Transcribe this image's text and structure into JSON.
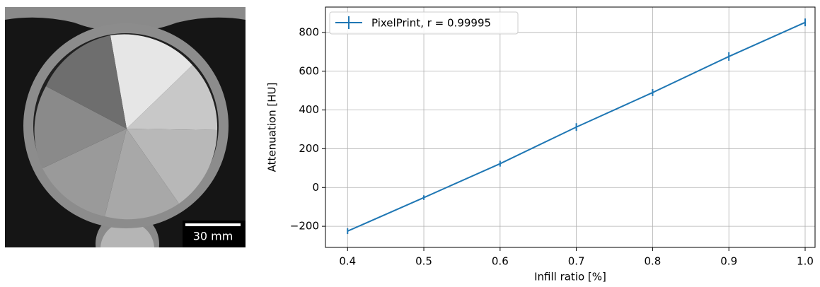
{
  "image": {
    "scale_bar": "30 mm"
  },
  "chart_data": {
    "type": "line",
    "x_label": "Infill ratio [%]",
    "y_label": "Attenuation [HU]",
    "x": [
      0.4,
      0.5,
      0.6,
      0.7,
      0.8,
      0.9,
      1.0
    ],
    "series": [
      {
        "name": "PixelPrint, r = 0.99995",
        "color": "#1f77b4",
        "values": [
          -225,
          -52,
          123,
          312,
          490,
          676,
          852
        ],
        "errors": [
          15,
          12,
          15,
          20,
          18,
          22,
          20
        ]
      }
    ],
    "xlim": [
      0.371,
      1.013
    ],
    "xticks": [
      0.4,
      0.5,
      0.6,
      0.7,
      0.8,
      0.9,
      {
        "value": 1.0,
        "label": "1.0"
      }
    ],
    "ylim": [
      -309,
      931
    ],
    "yticks": [
      {
        "value": -200,
        "label": "−200"
      },
      0,
      200,
      400,
      600,
      800
    ],
    "grid": true,
    "legend": "upper left"
  }
}
